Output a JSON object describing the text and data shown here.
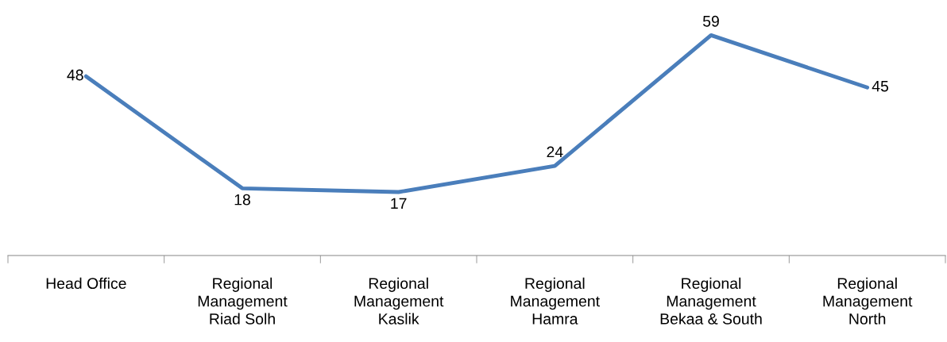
{
  "chart_data": {
    "type": "line",
    "data_labels": true,
    "categories": [
      "Head Office",
      "Regional\nManagement\nRiad Solh",
      "Regional\nManagement\nKaslik",
      "Regional\nManagement\nHamra",
      "Regional\nManagement\nBekaa & South",
      "Regional\nManagement\nNorth"
    ],
    "series": [
      {
        "color": "#4a7ebb",
        "values": [
          48,
          18,
          17,
          24,
          59,
          45
        ]
      }
    ],
    "marker": "none",
    "line_style": "solid",
    "grid": false,
    "legend": false
  }
}
